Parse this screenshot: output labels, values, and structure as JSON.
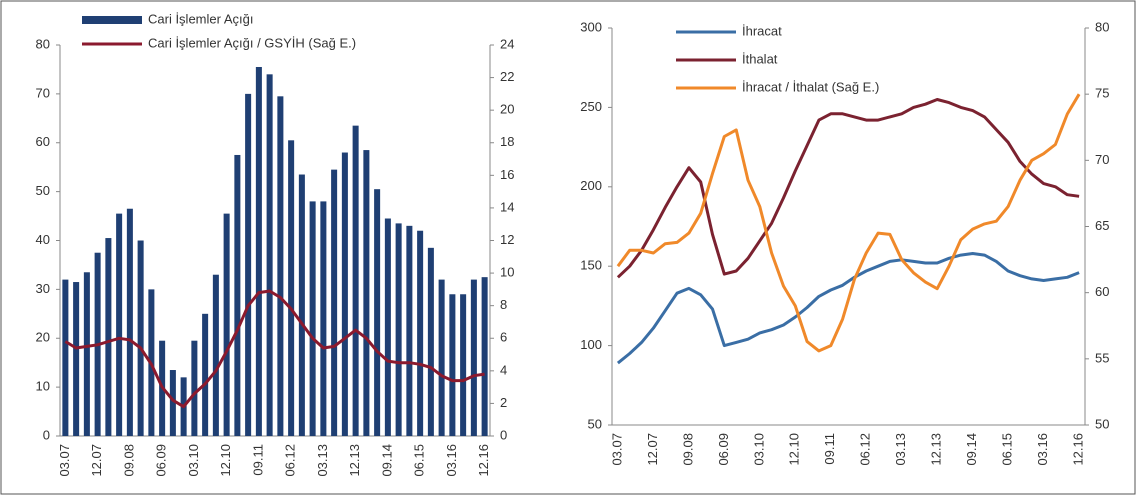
{
  "chart_data": [
    {
      "type": "bar",
      "categories": [
        "03.07",
        null,
        null,
        "12.07",
        null,
        null,
        "09.08",
        null,
        null,
        "06.09",
        null,
        null,
        "03.10",
        null,
        null,
        "12.10",
        null,
        null,
        "09.11",
        null,
        null,
        "06.12",
        null,
        null,
        "03.13",
        null,
        null,
        "12.13",
        null,
        null,
        "09.14",
        null,
        null,
        "06.15",
        null,
        null,
        "03.16",
        null,
        null,
        "12.16"
      ],
      "series": [
        {
          "name": "Cari İşlemler Açığı",
          "type": "bar",
          "color": "#1f3f73",
          "values": [
            32,
            31.5,
            33.5,
            37.5,
            40.5,
            45.5,
            46.5,
            40,
            30,
            19.5,
            13.5,
            12,
            19.5,
            25,
            33,
            45.5,
            57.5,
            70,
            75.5,
            74,
            69.5,
            60.5,
            53.5,
            48,
            48,
            54.5,
            58,
            63.5,
            58.5,
            50.5,
            44.5,
            43.5,
            43,
            42,
            38.5,
            32,
            29,
            29,
            32,
            32.5
          ]
        },
        {
          "name": "Cari İşlemler Açığı / GSYİH (Sağ E.)",
          "type": "line",
          "axis": "y2",
          "color": "#8b1a2e",
          "values": [
            5.8,
            5.4,
            5.5,
            5.6,
            5.8,
            6.0,
            5.9,
            5.4,
            4.4,
            3.0,
            2.2,
            1.8,
            2.6,
            3.2,
            4.0,
            5.2,
            6.5,
            8.0,
            8.8,
            8.9,
            8.5,
            7.8,
            6.9,
            6.0,
            5.4,
            5.5,
            6.0,
            6.5,
            6.0,
            5.2,
            4.6,
            4.5,
            4.5,
            4.4,
            4.2,
            3.7,
            3.4,
            3.4,
            3.7,
            3.8
          ]
        }
      ],
      "ylim": [
        0,
        80
      ],
      "yticks": [
        0,
        10,
        20,
        30,
        40,
        50,
        60,
        70,
        80
      ],
      "y2lim": [
        0,
        24
      ],
      "y2ticks": [
        0,
        2,
        4,
        6,
        8,
        10,
        12,
        14,
        16,
        18,
        20,
        22,
        24
      ]
    },
    {
      "type": "line",
      "categories": [
        "03.07",
        null,
        null,
        "12.07",
        null,
        null,
        "09.08",
        null,
        null,
        "06.09",
        null,
        null,
        "03.10",
        null,
        null,
        "12.10",
        null,
        null,
        "09.11",
        null,
        null,
        "06.12",
        null,
        null,
        "03.13",
        null,
        null,
        "12.13",
        null,
        null,
        "09.14",
        null,
        null,
        "06.15",
        null,
        null,
        "03.16",
        null,
        null,
        "12.16"
      ],
      "series": [
        {
          "name": "İhracat",
          "color": "#3a6ea5",
          "values": [
            89,
            95,
            102,
            111,
            122,
            133,
            136,
            132,
            123,
            100,
            102,
            104,
            108,
            110,
            113,
            118,
            124,
            131,
            135,
            138,
            143,
            147,
            150,
            153,
            154,
            153,
            152,
            152,
            155,
            157,
            158,
            157,
            153,
            147,
            144,
            142,
            141,
            142,
            143,
            146
          ]
        },
        {
          "name": "İthalat",
          "color": "#7b2230",
          "values": [
            143,
            150,
            160,
            173,
            187,
            200,
            212,
            203,
            170,
            145,
            147,
            155,
            166,
            177,
            193,
            210,
            226,
            242,
            246,
            246,
            244,
            242,
            242,
            244,
            246,
            250,
            252,
            255,
            253,
            250,
            248,
            244,
            236,
            228,
            216,
            208,
            202,
            200,
            195,
            194
          ]
        },
        {
          "name": "İhracat / İthalat (Sağ E.)",
          "axis": "y2",
          "color": "#f0892a",
          "values": [
            62,
            63.2,
            63.2,
            63,
            63.7,
            63.8,
            64.5,
            66,
            69,
            71.8,
            72.3,
            68.5,
            66.5,
            63,
            60.5,
            59,
            56.3,
            55.6,
            56,
            58,
            61,
            63,
            64.5,
            64.4,
            62.5,
            61.5,
            60.8,
            60.3,
            62,
            64,
            64.8,
            65.2,
            65.4,
            66.5,
            68.5,
            70,
            70.5,
            71.2,
            73.5,
            75
          ]
        }
      ],
      "ylim": [
        50,
        300
      ],
      "yticks": [
        50,
        100,
        150,
        200,
        250,
        300
      ],
      "y2lim": [
        50,
        80
      ],
      "y2ticks": [
        50,
        55,
        60,
        65,
        70,
        75,
        80
      ]
    }
  ]
}
